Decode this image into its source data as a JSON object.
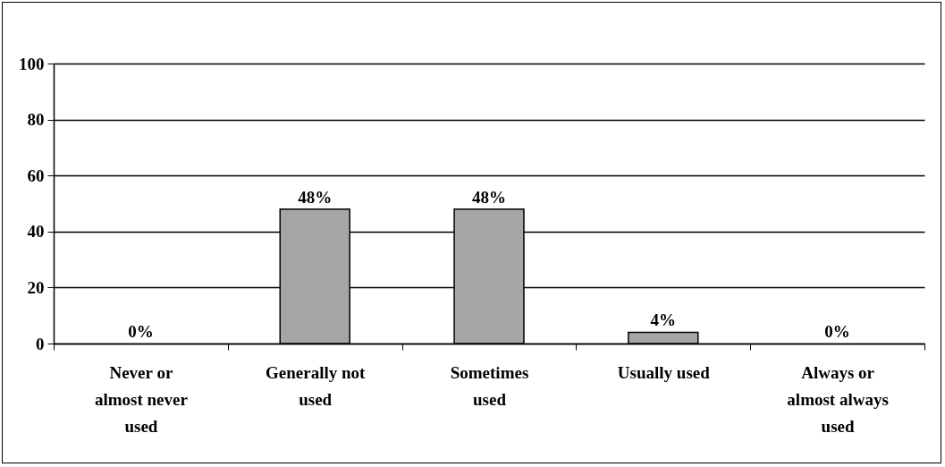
{
  "chart_data": {
    "type": "bar",
    "categories": [
      "Never or almost never used",
      "Generally not used",
      "Sometimes used",
      "Usually used",
      "Always or almost always used"
    ],
    "values": [
      0,
      48,
      48,
      4,
      0
    ],
    "value_labels": [
      "0%",
      "48%",
      "48%",
      "4%",
      "0%"
    ],
    "color": "#a6a6a6",
    "ylim": [
      0,
      100
    ],
    "yticks": [
      0,
      20,
      40,
      60,
      80,
      100
    ],
    "grid": "y"
  }
}
